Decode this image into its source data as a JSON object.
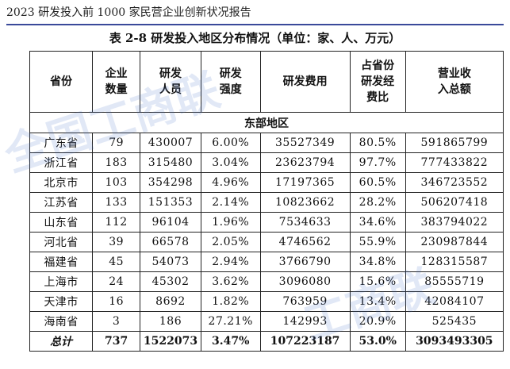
{
  "document": {
    "running_header": "2023 研发投入前 1000 家民营企业创新状况报告",
    "caption": "表 2-8  研发投入地区分布情况（单位：家、人、万元）"
  },
  "table": {
    "headers": [
      [
        "省份"
      ],
      [
        "企业",
        "数量"
      ],
      [
        "研发",
        "人员"
      ],
      [
        "研发",
        "强度"
      ],
      [
        "研发费用"
      ],
      [
        "占省份",
        "研发经",
        "费比"
      ],
      [
        "营业收",
        "入总额"
      ]
    ],
    "region_label": "东部地区",
    "rows": [
      [
        "广东省",
        "79",
        "430007",
        "6.00%",
        "35527349",
        "80.5%",
        "591865799"
      ],
      [
        "浙江省",
        "183",
        "315480",
        "3.04%",
        "23623794",
        "97.7%",
        "777433822"
      ],
      [
        "北京市",
        "103",
        "354298",
        "4.96%",
        "17197365",
        "60.5%",
        "346723552"
      ],
      [
        "江苏省",
        "133",
        "151353",
        "2.14%",
        "10823662",
        "28.2%",
        "506207418"
      ],
      [
        "山东省",
        "112",
        "96104",
        "1.96%",
        "7534633",
        "34.6%",
        "383794022"
      ],
      [
        "河北省",
        "39",
        "66578",
        "2.05%",
        "4746562",
        "55.9%",
        "230987844"
      ],
      [
        "福建省",
        "45",
        "54073",
        "2.94%",
        "3766790",
        "34.8%",
        "128315587"
      ],
      [
        "上海市",
        "24",
        "45302",
        "3.62%",
        "3096080",
        "15.6%",
        "85555719"
      ],
      [
        "天津市",
        "16",
        "8692",
        "1.82%",
        "763959",
        "13.4%",
        "42084107"
      ],
      [
        "海南省",
        "3",
        "186",
        "27.21%",
        "142993",
        "20.9%",
        "525435"
      ]
    ],
    "total": [
      "总计",
      "737",
      "1522073",
      "3.47%",
      "107223187",
      "53.0%",
      "3093493305"
    ]
  },
  "watermarks": [
    "全国工商联",
    "工商联"
  ],
  "colors": {
    "header_rule": "#3a4a9a",
    "watermark": "#466ec8"
  }
}
